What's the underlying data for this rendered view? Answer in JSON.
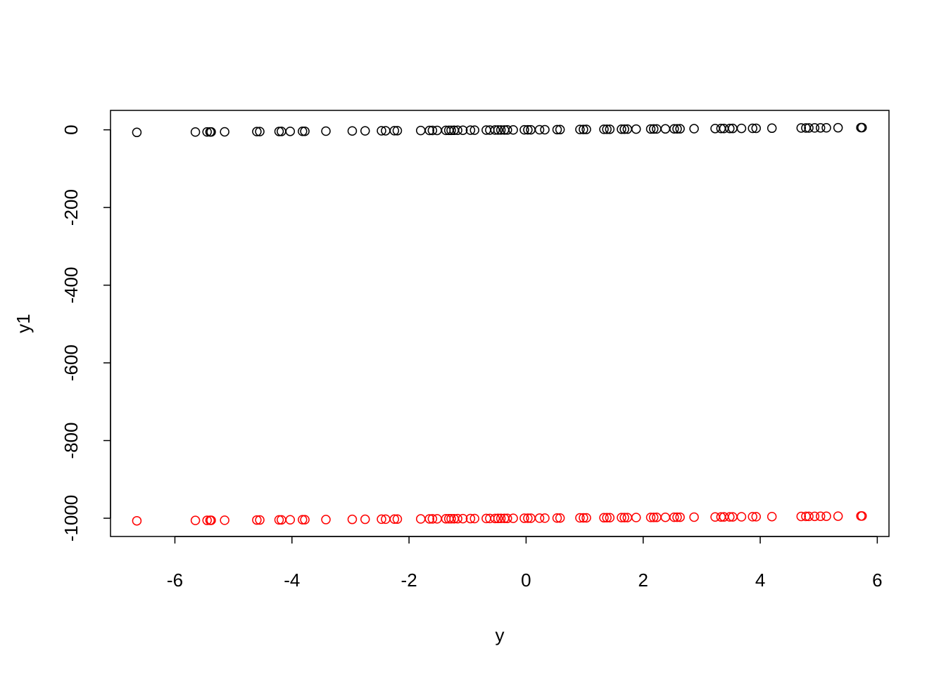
{
  "chart_data": {
    "type": "scatter",
    "title": "",
    "xlabel": "y",
    "ylabel": "y1",
    "xlim": [
      -7.1,
      6.2
    ],
    "ylim": [
      -1047,
      50
    ],
    "grid": false,
    "legend": "none",
    "x_ticks": [
      -6,
      -4,
      -2,
      0,
      2,
      4,
      6
    ],
    "y_ticks": [
      0,
      -200,
      -400,
      -600,
      -800,
      -1000
    ],
    "x_tick_labels": [
      "-6",
      "-4",
      "-2",
      "0",
      "2",
      "4",
      "6"
    ],
    "y_tick_labels": [
      "0",
      "-200",
      "-400",
      "-600",
      "-800",
      "-1000"
    ],
    "series": [
      {
        "color": "#000000",
        "x": [
          -6.65,
          -5.65,
          -5.45,
          -5.4,
          -5.38,
          -5.15,
          -4.6,
          -4.55,
          -4.22,
          -4.18,
          -4.03,
          -3.82,
          -3.78,
          -3.42,
          -2.97,
          -2.75,
          -2.47,
          -2.4,
          -2.25,
          -2.2,
          -1.8,
          -1.65,
          -1.6,
          -1.52,
          -1.37,
          -1.32,
          -1.28,
          -1.23,
          -1.17,
          -1.08,
          -0.95,
          -0.88,
          -0.68,
          -0.62,
          -0.53,
          -0.48,
          -0.43,
          -0.37,
          -0.32,
          -0.22,
          -0.03,
          0.03,
          0.08,
          0.23,
          0.32,
          0.53,
          0.58,
          0.92,
          0.98,
          1.03,
          1.33,
          1.38,
          1.43,
          1.63,
          1.68,
          1.73,
          1.88,
          2.13,
          2.18,
          2.23,
          2.38,
          2.53,
          2.58,
          2.63,
          2.87,
          3.23,
          3.33,
          3.38,
          3.48,
          3.53,
          3.68,
          3.87,
          3.93,
          4.2,
          4.7,
          4.78,
          4.83,
          4.93,
          5.03,
          5.13,
          5.33,
          5.72,
          5.74
        ],
        "y": [
          -6.65,
          -5.65,
          -5.45,
          -5.4,
          -5.38,
          -5.15,
          -4.6,
          -4.55,
          -4.22,
          -4.18,
          -4.03,
          -3.82,
          -3.78,
          -3.42,
          -2.97,
          -2.75,
          -2.47,
          -2.4,
          -2.25,
          -2.2,
          -1.8,
          -1.65,
          -1.6,
          -1.52,
          -1.37,
          -1.32,
          -1.28,
          -1.23,
          -1.17,
          -1.08,
          -0.95,
          -0.88,
          -0.68,
          -0.62,
          -0.53,
          -0.48,
          -0.43,
          -0.37,
          -0.32,
          -0.22,
          -0.03,
          0.03,
          0.08,
          0.23,
          0.32,
          0.53,
          0.58,
          0.92,
          0.98,
          1.03,
          1.33,
          1.38,
          1.43,
          1.63,
          1.68,
          1.73,
          1.88,
          2.13,
          2.18,
          2.23,
          2.38,
          2.53,
          2.58,
          2.63,
          2.87,
          3.23,
          3.33,
          3.38,
          3.48,
          3.53,
          3.68,
          3.87,
          3.93,
          4.2,
          4.7,
          4.78,
          4.83,
          4.93,
          5.03,
          5.13,
          5.33,
          5.72,
          5.74
        ]
      },
      {
        "color": "#ff0000",
        "x": [
          -6.65,
          -5.65,
          -5.45,
          -5.4,
          -5.38,
          -5.15,
          -4.6,
          -4.55,
          -4.22,
          -4.18,
          -4.03,
          -3.82,
          -3.78,
          -3.42,
          -2.97,
          -2.75,
          -2.47,
          -2.4,
          -2.25,
          -2.2,
          -1.8,
          -1.65,
          -1.6,
          -1.52,
          -1.37,
          -1.32,
          -1.28,
          -1.23,
          -1.17,
          -1.08,
          -0.95,
          -0.88,
          -0.68,
          -0.62,
          -0.53,
          -0.48,
          -0.43,
          -0.37,
          -0.32,
          -0.22,
          -0.03,
          0.03,
          0.08,
          0.23,
          0.32,
          0.53,
          0.58,
          0.92,
          0.98,
          1.03,
          1.33,
          1.38,
          1.43,
          1.63,
          1.68,
          1.73,
          1.88,
          2.13,
          2.18,
          2.23,
          2.38,
          2.53,
          2.58,
          2.63,
          2.87,
          3.23,
          3.33,
          3.38,
          3.48,
          3.53,
          3.68,
          3.87,
          3.93,
          4.2,
          4.7,
          4.78,
          4.83,
          4.93,
          5.03,
          5.13,
          5.33,
          5.72,
          5.74
        ],
        "y": [
          -1006.65,
          -1005.65,
          -1005.45,
          -1005.4,
          -1005.38,
          -1005.15,
          -1004.6,
          -1004.55,
          -1004.22,
          -1004.18,
          -1004.03,
          -1003.82,
          -1003.78,
          -1003.42,
          -1002.97,
          -1002.75,
          -1002.47,
          -1002.4,
          -1002.25,
          -1002.2,
          -1001.8,
          -1001.65,
          -1001.6,
          -1001.52,
          -1001.37,
          -1001.32,
          -1001.28,
          -1001.23,
          -1001.17,
          -1001.08,
          -1000.95,
          -1000.88,
          -1000.68,
          -1000.62,
          -1000.53,
          -1000.48,
          -1000.43,
          -1000.37,
          -1000.32,
          -1000.22,
          -1000.03,
          -999.97,
          -999.92,
          -999.77,
          -999.68,
          -999.47,
          -999.42,
          -999.08,
          -999.02,
          -998.97,
          -998.67,
          -998.62,
          -998.57,
          -998.37,
          -998.32,
          -998.27,
          -998.12,
          -997.87,
          -997.82,
          -997.77,
          -997.62,
          -997.47,
          -997.42,
          -997.37,
          -997.13,
          -996.77,
          -996.67,
          -996.62,
          -996.52,
          -996.47,
          -996.32,
          -996.13,
          -996.07,
          -995.8,
          -995.3,
          -995.22,
          -995.17,
          -995.07,
          -994.97,
          -994.87,
          -994.67,
          -994.28,
          -994.26
        ]
      }
    ]
  }
}
